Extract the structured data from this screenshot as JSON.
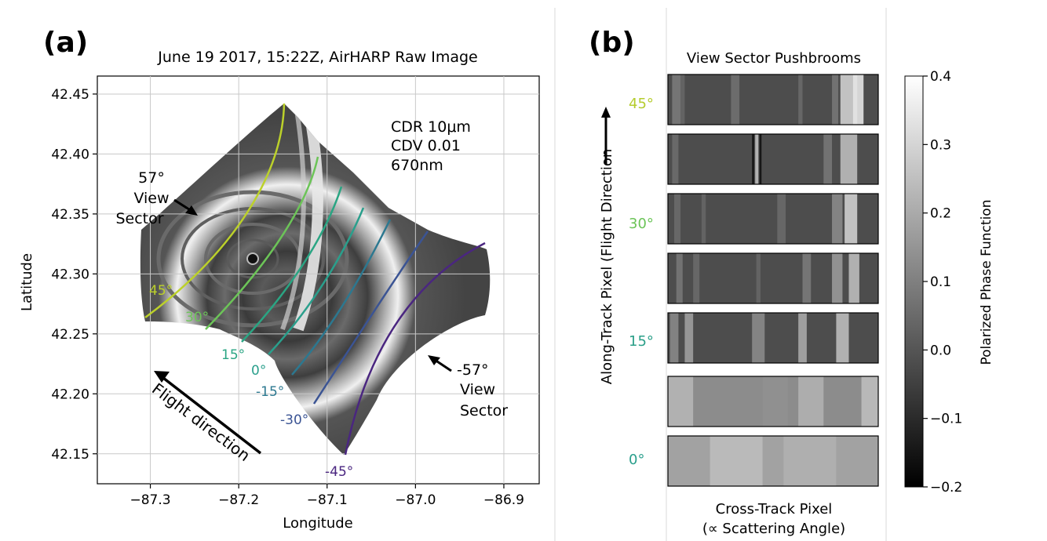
{
  "panel_a": {
    "label": "(a)",
    "title": "June 19 2017, 15:22Z, AirHARP Raw Image",
    "xlabel": "Longitude",
    "ylabel": "Latitude",
    "xlim": [
      -87.36,
      -86.86
    ],
    "ylim": [
      42.125,
      42.465
    ],
    "xticks": [
      -87.3,
      -87.2,
      -87.1,
      -87.0,
      -86.9
    ],
    "xtick_labels": [
      "−87.3",
      "−87.2",
      "−87.1",
      "−87.0",
      "−86.9"
    ],
    "yticks": [
      42.15,
      42.2,
      42.25,
      42.3,
      42.35,
      42.4,
      42.45
    ],
    "ytick_labels": [
      "42.15",
      "42.20",
      "42.25",
      "42.30",
      "42.35",
      "42.40",
      "42.45"
    ],
    "info_lines": [
      "CDR 10μm",
      "CDV 0.01",
      "670nm"
    ],
    "left_sector": [
      "57°",
      "View",
      "Sector"
    ],
    "right_sector": [
      "-57°",
      "View",
      "Sector"
    ],
    "flight_label": "Flight direction",
    "view_lines": [
      {
        "label": "45°",
        "color": "#bcd12a"
      },
      {
        "label": "30°",
        "color": "#6cc458"
      },
      {
        "label": "15°",
        "color": "#2a9f88"
      },
      {
        "label": "0°",
        "color": "#2a9f8c"
      },
      {
        "label": "-15°",
        "color": "#2c7890"
      },
      {
        "label": "-30°",
        "color": "#3b5494"
      },
      {
        "label": "-45°",
        "color": "#4a2680"
      }
    ]
  },
  "panel_b": {
    "label": "(b)",
    "title": "View Sector Pushbrooms",
    "xlabel_line1": "Cross-Track Pixel",
    "xlabel_line2": "(∝ Scattering Angle)",
    "ylabel": "Along-Track Pixel (Flight Direction",
    "row_labels": [
      {
        "text": "45°",
        "color": "#b5cc2e"
      },
      {
        "text": "30°",
        "color": "#6cc458"
      },
      {
        "text": "15°",
        "color": "#2a9f88"
      },
      {
        "text": "0°",
        "color": "#2a9f8c"
      }
    ]
  },
  "colorbar": {
    "label": "Polarized Phase Function",
    "range": [
      -0.2,
      0.4
    ],
    "ticks": [
      0.4,
      0.3,
      0.2,
      0.1,
      0.0,
      -0.1,
      -0.2
    ],
    "tick_labels": [
      "0.4",
      "0.3",
      "0.2",
      "0.1",
      "0.0",
      "−0.1",
      "−0.2"
    ]
  }
}
